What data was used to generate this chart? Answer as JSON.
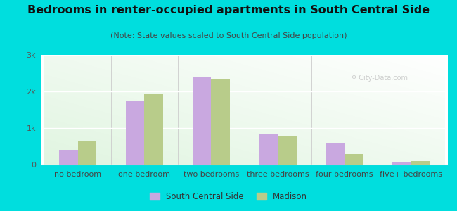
{
  "title": "Bedrooms in renter-occupied apartments in South Central Side",
  "subtitle": "(Note: State values scaled to South Central Side population)",
  "categories": [
    "no bedroom",
    "one bedroom",
    "two bedrooms",
    "three bedrooms",
    "four bedrooms",
    "five+ bedrooms"
  ],
  "south_central_side": [
    400,
    1750,
    2400,
    850,
    600,
    80
  ],
  "madison": [
    650,
    1950,
    2330,
    780,
    280,
    90
  ],
  "scs_color": "#c9a8e0",
  "madison_color": "#b8cc8a",
  "background_outer": "#00dede",
  "yticks": [
    0,
    1000,
    2000,
    3000
  ],
  "ytick_labels": [
    "0",
    "1k",
    "2k",
    "3k"
  ],
  "ylim": [
    0,
    3000
  ],
  "legend_scs": "South Central Side",
  "legend_madison": "Madison",
  "bar_width": 0.28,
  "title_fontsize": 11.5,
  "subtitle_fontsize": 8,
  "tick_fontsize": 8,
  "legend_fontsize": 8.5
}
